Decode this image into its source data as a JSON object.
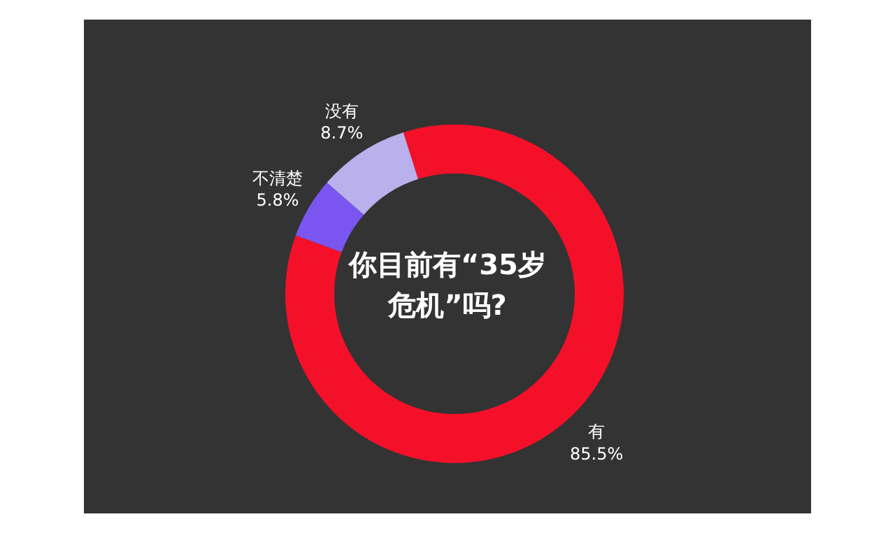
{
  "chart_data": {
    "type": "donut",
    "title": "你目前有“35岁危机”吗?",
    "categories": [
      "有",
      "不清楚",
      "没有"
    ],
    "values": [
      85.5,
      5.8,
      8.7
    ],
    "colors": [
      "#f5102a",
      "#7b55f0",
      "#b9b0ec"
    ],
    "value_labels": [
      "85.5%",
      "5.8%",
      "8.7%"
    ]
  }
}
